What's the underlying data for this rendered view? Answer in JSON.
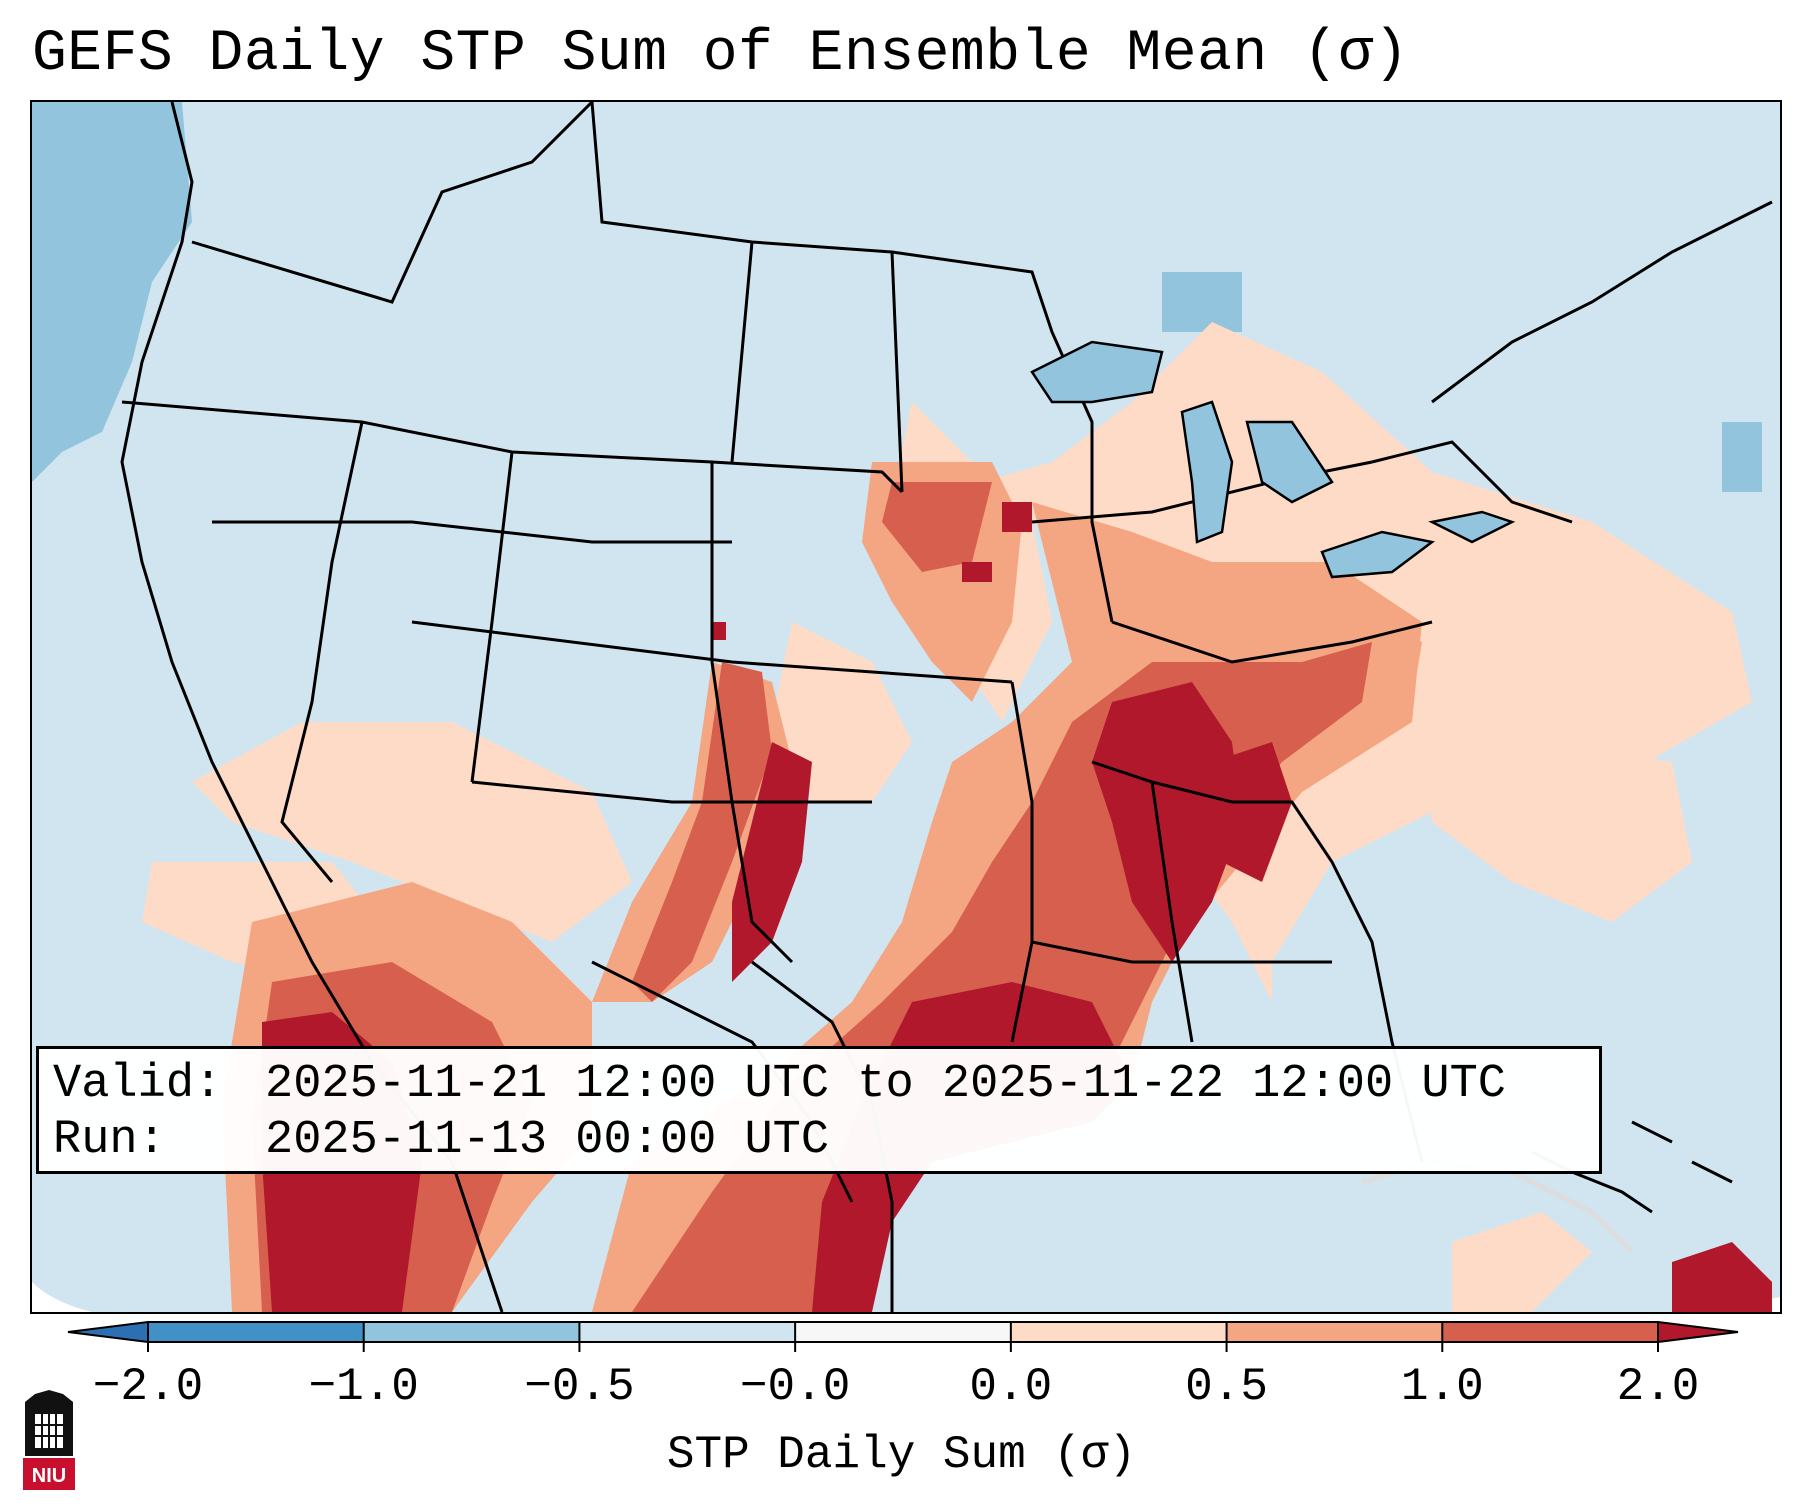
{
  "title": "GEFS Daily STP Sum of Ensemble Mean (σ)",
  "info": {
    "valid_label": "Valid:",
    "valid_value": "2025-11-21 12:00 UTC to 2025-11-22 12:00 UTC",
    "run_label": "Run:",
    "run_value": "2025-11-13 00:00 UTC"
  },
  "colorbar": {
    "label": "STP Daily Sum (σ)",
    "ticks": [
      "−2.0",
      "−1.0",
      "−0.5",
      "−0.0",
      "0.0",
      "0.5",
      "1.0",
      "2.0"
    ],
    "colors": {
      "below": "#2c6fb2",
      "bins": [
        "#4190c6",
        "#93c4de",
        "#d1e5f0",
        "#f7f7f7",
        "#fddbc7",
        "#f4a582",
        "#d6604d"
      ],
      "above": "#b2182b"
    }
  },
  "logo": {
    "text": "NIU",
    "color": "#c8102e"
  },
  "map_regions": [
    "ocean-background",
    "west-coast-blue-band",
    "southern-plains-red-band",
    "gulf-coast-dark-red",
    "southeast-red-band",
    "mexico-red-region",
    "northeast-light-red"
  ]
}
